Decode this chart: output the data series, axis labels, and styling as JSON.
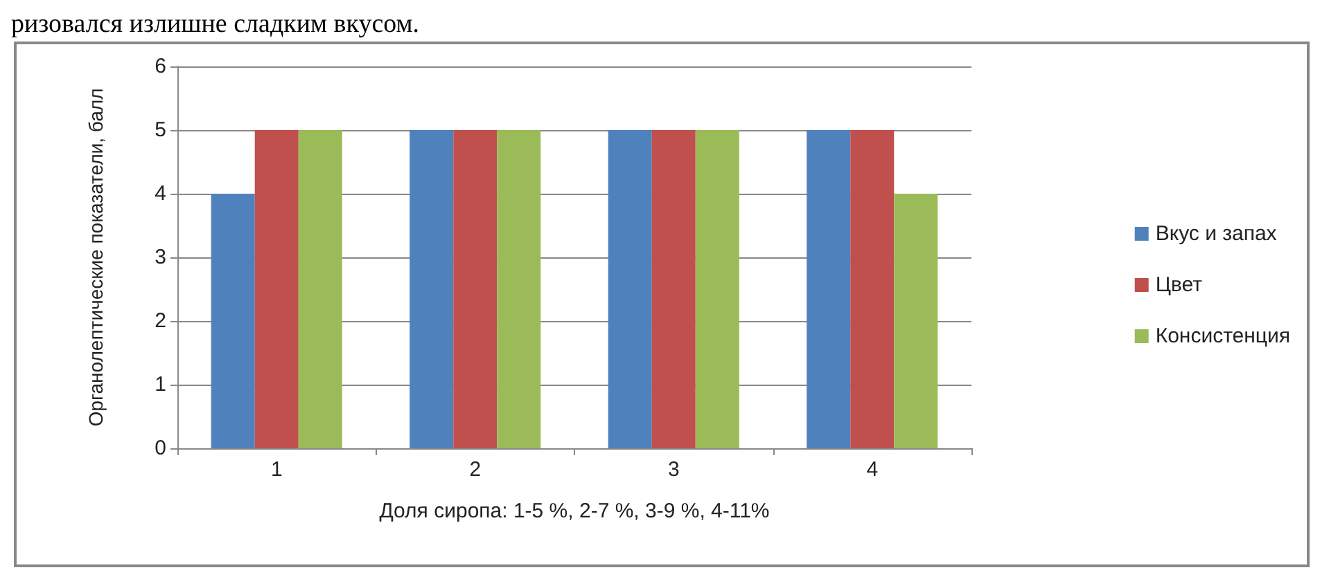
{
  "chart_data": {
    "type": "bar",
    "annotations": [
      "ризовался излишне сладким вкусом."
    ],
    "xlabel": "Доля сиропа: 1-5 %, 2-7 %, 3-9 %, 4-11%",
    "ylabel": "Органолептические показатели, балл",
    "categories": [
      "1",
      "2",
      "3",
      "4"
    ],
    "series": [
      {
        "name": "Вкус и запах",
        "color": "#4f81bd",
        "values": [
          4,
          5,
          5,
          5
        ]
      },
      {
        "name": "Цвет",
        "color": "#c0504d",
        "values": [
          5,
          5,
          5,
          5
        ]
      },
      {
        "name": "Консистенция",
        "color": "#9bbb59",
        "values": [
          5,
          5,
          5,
          4
        ]
      }
    ],
    "ylim": [
      0,
      6
    ],
    "yticks": [
      0,
      1,
      2,
      3,
      4,
      5,
      6
    ],
    "grid": "y",
    "legend": "right"
  }
}
